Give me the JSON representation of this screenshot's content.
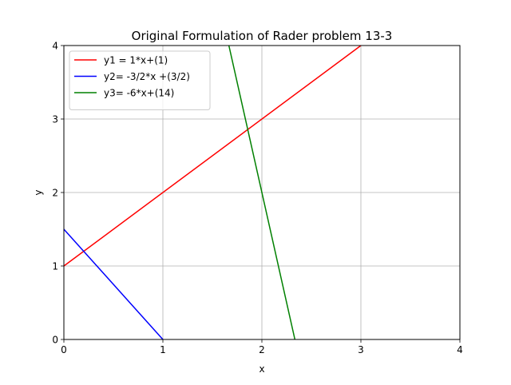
{
  "chart_data": {
    "type": "line",
    "title": "Original Formulation of Rader problem 13-3",
    "xlabel": "x",
    "ylabel": "y",
    "xlim": [
      0,
      4
    ],
    "ylim": [
      0,
      4
    ],
    "xticks": [
      0,
      1,
      2,
      3,
      4
    ],
    "yticks": [
      0,
      1,
      2,
      3,
      4
    ],
    "grid": true,
    "legend_position": "top-left",
    "series": [
      {
        "name": "y1 = 1*x+(1)",
        "color": "#ff0000",
        "x": [
          0,
          3
        ],
        "y": [
          1,
          4
        ]
      },
      {
        "name": "y2= -3/2*x +(3/2)",
        "color": "#0000ff",
        "x": [
          0,
          1
        ],
        "y": [
          1.5,
          0
        ]
      },
      {
        "name": "y3= -6*x+(14)",
        "color": "#008000",
        "x": [
          1.6667,
          2.3333
        ],
        "y": [
          4,
          0
        ]
      }
    ]
  }
}
